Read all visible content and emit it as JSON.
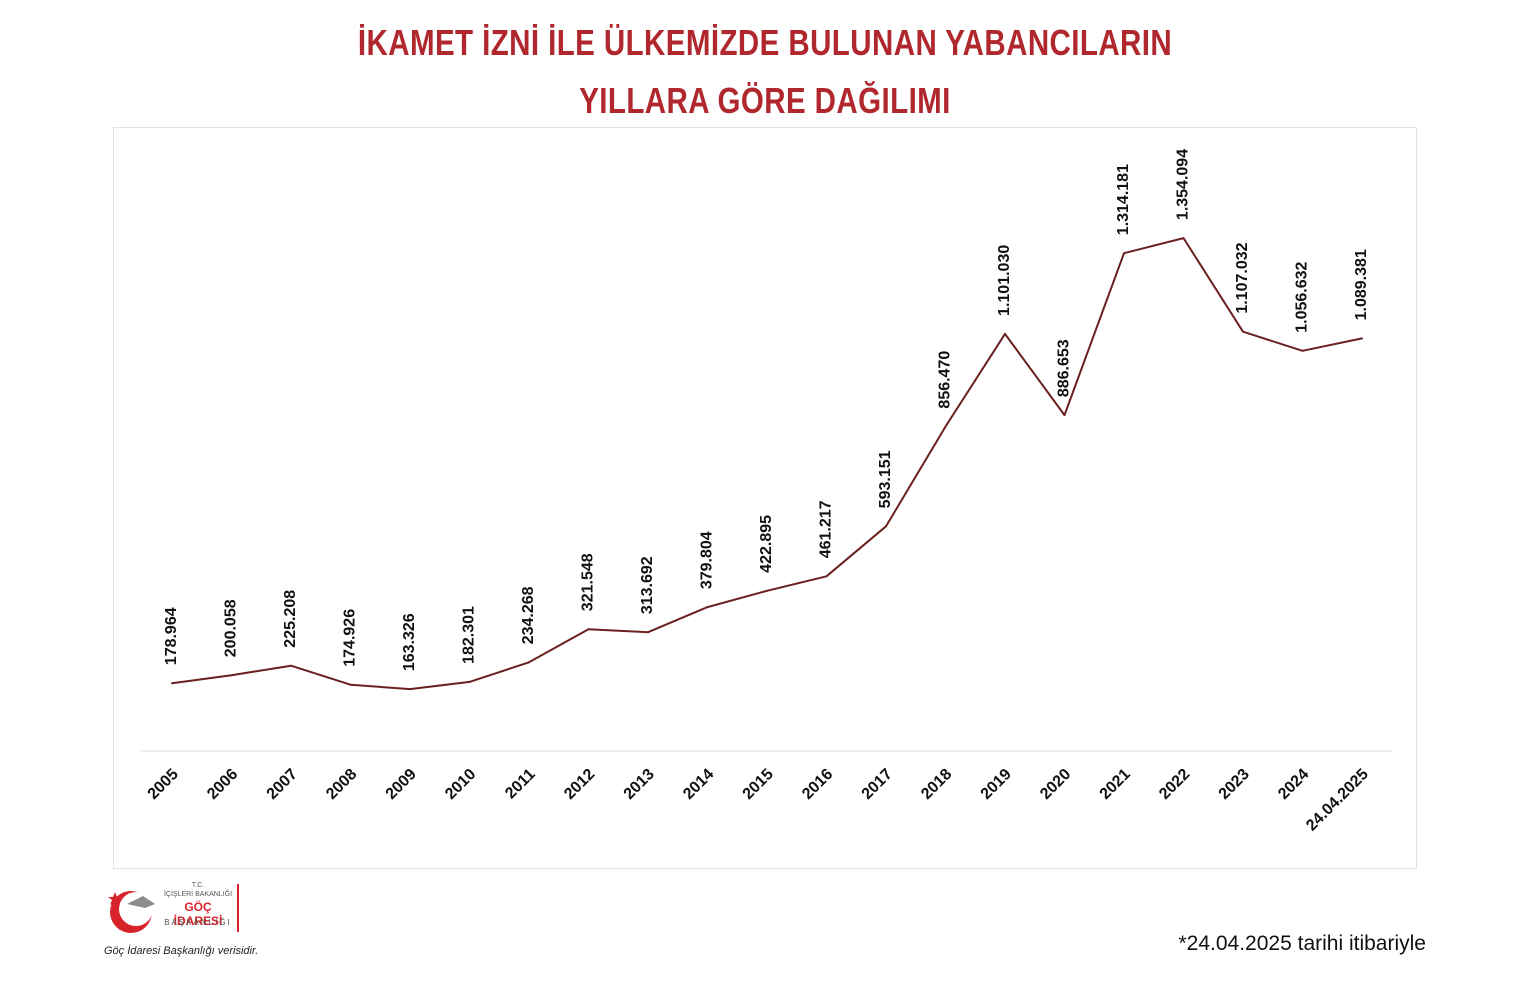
{
  "title_line1": "İKAMET İZNİ İLE ÜLKEMİZDE BULUNAN YABANCILARIN",
  "title_line2": "YILLARA GÖRE DAĞILIMI",
  "logo": {
    "line1": "T.C.",
    "line2": "İÇİŞLERİ BAKANLIĞI",
    "line3": "GÖÇ İDARESİ",
    "line4": "BAŞKANLIĞI"
  },
  "source_text": "Göç İdaresi Başkanlığı verisidir.",
  "footnote": "*24.04.2025 tarihi itibariyle",
  "colors": {
    "title": "#b0282e",
    "line": "#6b2020",
    "logo_red": "#d8232a"
  },
  "chart_data": {
    "type": "line",
    "categories": [
      "2005",
      "2006",
      "2007",
      "2008",
      "2009",
      "2010",
      "2011",
      "2012",
      "2013",
      "2014",
      "2015",
      "2016",
      "2017",
      "2018",
      "2019",
      "2020",
      "2021",
      "2022",
      "2023",
      "2024",
      "24.04.2025"
    ],
    "values": [
      178964,
      200058,
      225208,
      174926,
      163326,
      182301,
      234268,
      321548,
      313692,
      379804,
      422895,
      461217,
      593151,
      856470,
      1101030,
      886653,
      1314181,
      1354094,
      1107032,
      1056632,
      1089381
    ],
    "data_labels": [
      "178.964",
      "200.058",
      "225.208",
      "174.926",
      "163.326",
      "182.301",
      "234.268",
      "321.548",
      "313.692",
      "379.804",
      "422.895",
      "461.217",
      "593.151",
      "856.470",
      "1.101.030",
      "886.653",
      "1.314.181",
      "1.354.094",
      "1.107.032",
      "1.056.632",
      "1.089.381"
    ],
    "ylim": [
      0,
      1650000
    ],
    "grid": false,
    "legend": "none",
    "xlabel": "",
    "ylabel": ""
  }
}
